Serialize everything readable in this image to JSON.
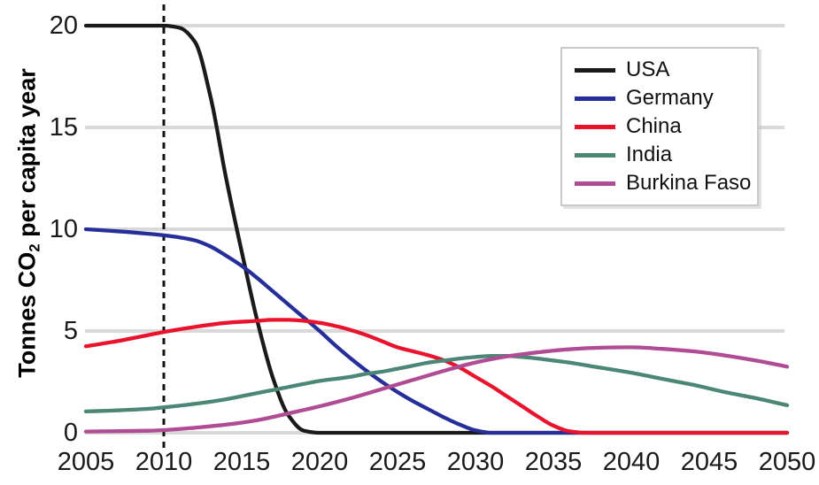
{
  "figure": {
    "background": "#ffffff",
    "text_color": "#1a1a1a"
  },
  "chart_data": {
    "type": "line",
    "title": "",
    "xlabel": "",
    "ylabel_parts": {
      "pre": "Tonnes CO",
      "sub": "2",
      "post": " per capita year"
    },
    "xlim": [
      2005,
      2050
    ],
    "ylim": [
      0,
      20
    ],
    "x_ticks": [
      2005,
      2010,
      2015,
      2020,
      2025,
      2030,
      2035,
      2040,
      2045,
      2050
    ],
    "y_ticks": [
      0,
      5,
      10,
      15,
      20
    ],
    "grid": "horizontal",
    "gridline_color": "#d9d9d9",
    "legend": {
      "position": "upper right",
      "border_color": "#c9c9c9"
    },
    "annotations": [
      {
        "type": "vline",
        "x": 2010,
        "style": "dotted",
        "color": "#111111"
      }
    ],
    "series": [
      {
        "name": "USA",
        "color": "#1a1a1a",
        "points": [
          [
            2005,
            20
          ],
          [
            2007,
            20
          ],
          [
            2009,
            20
          ],
          [
            2010,
            20
          ],
          [
            2011,
            19.9
          ],
          [
            2012,
            19.2
          ],
          [
            2013,
            16.5
          ],
          [
            2014,
            12.5
          ],
          [
            2015,
            8.9
          ],
          [
            2016,
            5.5
          ],
          [
            2017,
            2.7
          ],
          [
            2018,
            0.85
          ],
          [
            2019,
            0.1
          ],
          [
            2020,
            0
          ],
          [
            2035,
            0
          ],
          [
            2050,
            0
          ]
        ]
      },
      {
        "name": "Germany",
        "color": "#262f99",
        "points": [
          [
            2005,
            10
          ],
          [
            2007,
            9.9
          ],
          [
            2009,
            9.78
          ],
          [
            2010,
            9.7
          ],
          [
            2011,
            9.6
          ],
          [
            2012,
            9.45
          ],
          [
            2013,
            9.15
          ],
          [
            2014,
            8.7
          ],
          [
            2015,
            8.2
          ],
          [
            2016,
            7.6
          ],
          [
            2017,
            6.95
          ],
          [
            2018,
            6.3
          ],
          [
            2019,
            5.65
          ],
          [
            2020,
            5.0
          ],
          [
            2021,
            4.3
          ],
          [
            2022,
            3.65
          ],
          [
            2023,
            3.05
          ],
          [
            2024,
            2.5
          ],
          [
            2025,
            2.0
          ],
          [
            2026,
            1.55
          ],
          [
            2027,
            1.15
          ],
          [
            2028,
            0.75
          ],
          [
            2029,
            0.4
          ],
          [
            2030,
            0.12
          ],
          [
            2031,
            0
          ],
          [
            2040,
            0
          ],
          [
            2050,
            0
          ]
        ]
      },
      {
        "name": "China",
        "color": "#e9132d",
        "points": [
          [
            2005,
            4.25
          ],
          [
            2007,
            4.5
          ],
          [
            2009,
            4.8
          ],
          [
            2010,
            4.95
          ],
          [
            2012,
            5.2
          ],
          [
            2014,
            5.4
          ],
          [
            2016,
            5.5
          ],
          [
            2017,
            5.55
          ],
          [
            2018,
            5.55
          ],
          [
            2019,
            5.5
          ],
          [
            2020,
            5.4
          ],
          [
            2021,
            5.25
          ],
          [
            2022,
            5.05
          ],
          [
            2023,
            4.8
          ],
          [
            2024,
            4.5
          ],
          [
            2025,
            4.2
          ],
          [
            2026,
            4.0
          ],
          [
            2027,
            3.8
          ],
          [
            2028,
            3.55
          ],
          [
            2029,
            3.2
          ],
          [
            2030,
            2.75
          ],
          [
            2031,
            2.3
          ],
          [
            2032,
            1.8
          ],
          [
            2033,
            1.3
          ],
          [
            2034,
            0.8
          ],
          [
            2035,
            0.35
          ],
          [
            2036,
            0.08
          ],
          [
            2037,
            0
          ],
          [
            2045,
            0
          ],
          [
            2050,
            0
          ]
        ]
      },
      {
        "name": "India",
        "color": "#4b8677",
        "points": [
          [
            2005,
            1.05
          ],
          [
            2007,
            1.1
          ],
          [
            2009,
            1.18
          ],
          [
            2010,
            1.25
          ],
          [
            2012,
            1.42
          ],
          [
            2014,
            1.65
          ],
          [
            2015,
            1.8
          ],
          [
            2016,
            1.95
          ],
          [
            2017,
            2.1
          ],
          [
            2018,
            2.25
          ],
          [
            2019,
            2.4
          ],
          [
            2020,
            2.55
          ],
          [
            2021,
            2.65
          ],
          [
            2022,
            2.75
          ],
          [
            2023,
            2.9
          ],
          [
            2024,
            3.0
          ],
          [
            2025,
            3.15
          ],
          [
            2026,
            3.3
          ],
          [
            2027,
            3.45
          ],
          [
            2028,
            3.55
          ],
          [
            2029,
            3.65
          ],
          [
            2030,
            3.72
          ],
          [
            2031,
            3.78
          ],
          [
            2032,
            3.78
          ],
          [
            2033,
            3.72
          ],
          [
            2034,
            3.65
          ],
          [
            2035,
            3.55
          ],
          [
            2036,
            3.45
          ],
          [
            2038,
            3.2
          ],
          [
            2040,
            2.95
          ],
          [
            2042,
            2.65
          ],
          [
            2044,
            2.35
          ],
          [
            2046,
            2.0
          ],
          [
            2048,
            1.7
          ],
          [
            2050,
            1.35
          ]
        ]
      },
      {
        "name": "Burkina Faso",
        "color": "#b04c94",
        "points": [
          [
            2005,
            0.06
          ],
          [
            2007,
            0.08
          ],
          [
            2009,
            0.1
          ],
          [
            2010,
            0.13
          ],
          [
            2012,
            0.25
          ],
          [
            2014,
            0.4
          ],
          [
            2016,
            0.62
          ],
          [
            2018,
            0.95
          ],
          [
            2020,
            1.3
          ],
          [
            2022,
            1.7
          ],
          [
            2024,
            2.15
          ],
          [
            2026,
            2.6
          ],
          [
            2028,
            3.05
          ],
          [
            2030,
            3.45
          ],
          [
            2032,
            3.75
          ],
          [
            2034,
            3.95
          ],
          [
            2036,
            4.1
          ],
          [
            2038,
            4.18
          ],
          [
            2040,
            4.2
          ],
          [
            2042,
            4.12
          ],
          [
            2044,
            4.0
          ],
          [
            2046,
            3.8
          ],
          [
            2048,
            3.55
          ],
          [
            2050,
            3.25
          ]
        ]
      }
    ]
  }
}
